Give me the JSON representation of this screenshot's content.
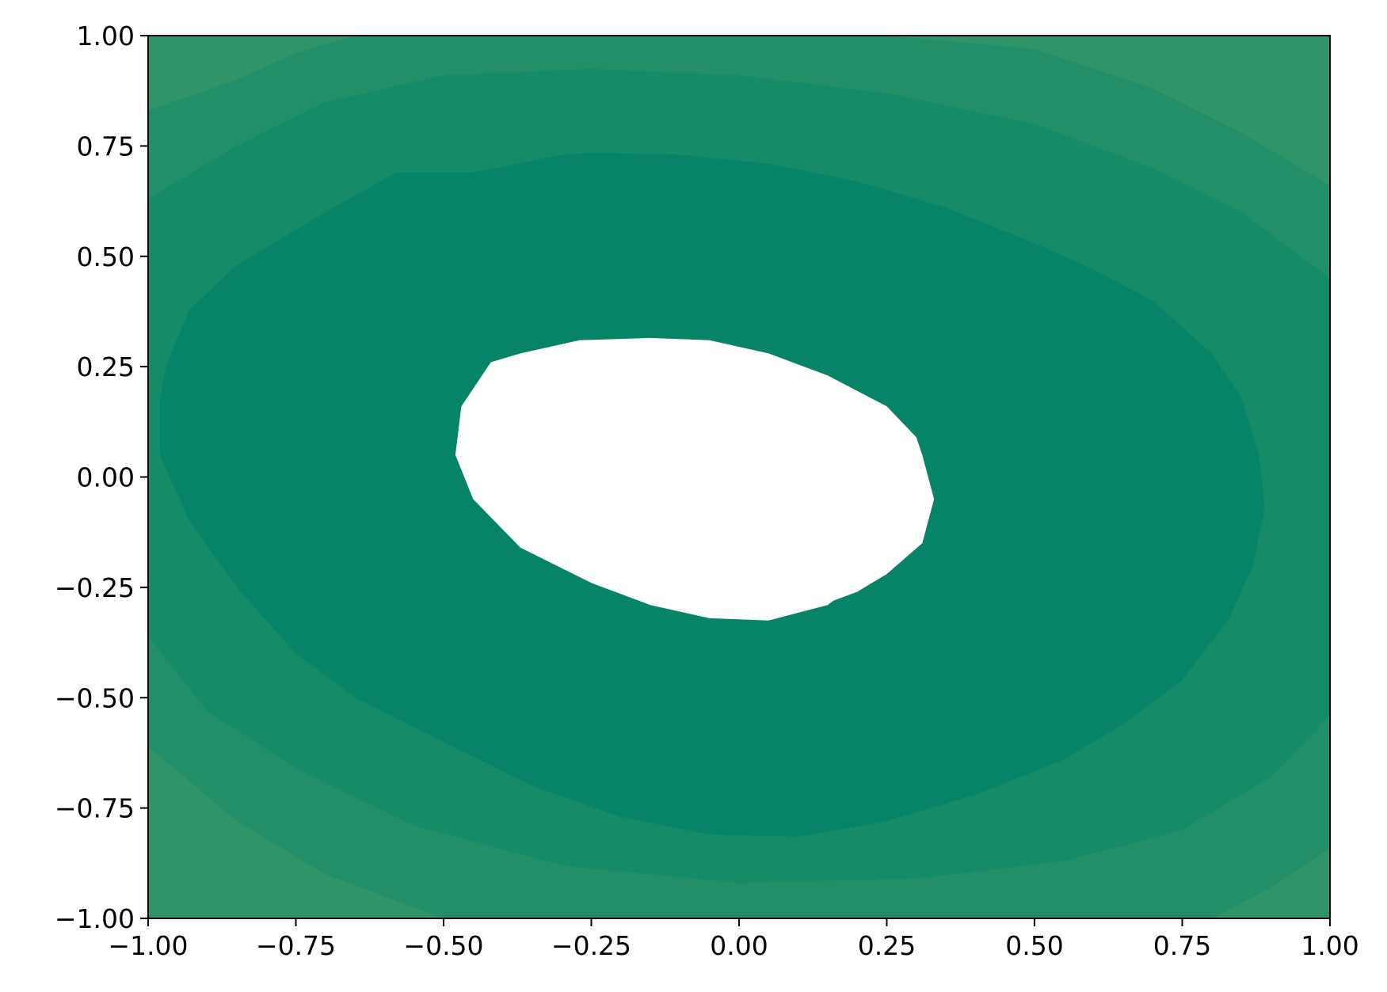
{
  "chart_data": {
    "type": "contourf",
    "title": "",
    "xlabel": "",
    "ylabel": "",
    "xlim": [
      -1.0,
      1.0
    ],
    "ylim": [
      -1.0,
      1.0
    ],
    "x_ticks": [
      -1.0,
      -0.75,
      -0.5,
      -0.25,
      0.0,
      0.25,
      0.5,
      0.75,
      1.0
    ],
    "y_ticks": [
      -1.0,
      -0.75,
      -0.5,
      -0.25,
      0.0,
      0.25,
      0.5,
      0.75,
      1.0
    ],
    "x_tick_labels": [
      "−1.00",
      "−0.75",
      "−0.50",
      "−0.25",
      "0.00",
      "0.25",
      "0.50",
      "0.75",
      "1.00"
    ],
    "y_tick_labels": [
      "−1.00",
      "−0.75",
      "−0.50",
      "−0.25",
      "0.00",
      "0.25",
      "0.50",
      "0.75",
      "1.00"
    ],
    "grid": false,
    "legend": false,
    "hole_color": "#ffffff",
    "levels": [
      {
        "name": "band-4",
        "color": "#2f9467",
        "points": [
          [
            -1.0,
            1.0
          ],
          [
            1.0,
            1.0
          ],
          [
            1.0,
            -1.0
          ],
          [
            -1.0,
            -1.0
          ]
        ]
      },
      {
        "name": "band-3",
        "color": "#228f68",
        "points": [
          [
            -1.0,
            0.83
          ],
          [
            -0.85,
            0.9
          ],
          [
            -0.75,
            0.96
          ],
          [
            -0.65,
            1.0
          ],
          [
            0.25,
            1.0
          ],
          [
            0.5,
            0.97
          ],
          [
            0.7,
            0.88
          ],
          [
            0.85,
            0.78
          ],
          [
            1.0,
            0.66
          ],
          [
            1.0,
            -0.84
          ],
          [
            0.9,
            -0.93
          ],
          [
            0.8,
            -1.0
          ],
          [
            -0.5,
            -1.0
          ],
          [
            -0.7,
            -0.9
          ],
          [
            -0.85,
            -0.78
          ],
          [
            -1.0,
            -0.61
          ]
        ]
      },
      {
        "name": "band-2",
        "color": "#168b68",
        "points": [
          [
            -1.0,
            0.63
          ],
          [
            -0.85,
            0.75
          ],
          [
            -0.7,
            0.85
          ],
          [
            -0.5,
            0.91
          ],
          [
            -0.25,
            0.925
          ],
          [
            0.0,
            0.91
          ],
          [
            0.25,
            0.87
          ],
          [
            0.5,
            0.8
          ],
          [
            0.7,
            0.7
          ],
          [
            0.85,
            0.6
          ],
          [
            1.0,
            0.45
          ],
          [
            1.0,
            -0.54
          ],
          [
            0.9,
            -0.68
          ],
          [
            0.75,
            -0.8
          ],
          [
            0.55,
            -0.87
          ],
          [
            0.3,
            -0.91
          ],
          [
            0.0,
            -0.92
          ],
          [
            -0.3,
            -0.88
          ],
          [
            -0.55,
            -0.79
          ],
          [
            -0.75,
            -0.66
          ],
          [
            -0.9,
            -0.53
          ],
          [
            -1.0,
            -0.36
          ]
        ]
      },
      {
        "name": "band-1",
        "color": "#078467",
        "points": [
          [
            -0.98,
            0.18
          ],
          [
            -0.97,
            0.25
          ],
          [
            -0.93,
            0.38
          ],
          [
            -0.85,
            0.48
          ],
          [
            -0.7,
            0.6
          ],
          [
            -0.58,
            0.69
          ],
          [
            -0.45,
            0.69
          ],
          [
            -0.3,
            0.73
          ],
          [
            -0.25,
            0.735
          ],
          [
            -0.1,
            0.73
          ],
          [
            0.05,
            0.71
          ],
          [
            0.2,
            0.67
          ],
          [
            0.35,
            0.61
          ],
          [
            0.5,
            0.53
          ],
          [
            0.6,
            0.47
          ],
          [
            0.7,
            0.4
          ],
          [
            0.8,
            0.28
          ],
          [
            0.85,
            0.18
          ],
          [
            0.88,
            0.05
          ],
          [
            0.89,
            -0.07
          ],
          [
            0.87,
            -0.2
          ],
          [
            0.83,
            -0.32
          ],
          [
            0.75,
            -0.46
          ],
          [
            0.65,
            -0.56
          ],
          [
            0.55,
            -0.64
          ],
          [
            0.4,
            -0.72
          ],
          [
            0.25,
            -0.78
          ],
          [
            0.1,
            -0.815
          ],
          [
            -0.05,
            -0.81
          ],
          [
            -0.2,
            -0.77
          ],
          [
            -0.35,
            -0.7
          ],
          [
            -0.5,
            -0.6
          ],
          [
            -0.65,
            -0.5
          ],
          [
            -0.75,
            -0.4
          ],
          [
            -0.85,
            -0.25
          ],
          [
            -0.93,
            -0.1
          ],
          [
            -0.98,
            0.05
          ]
        ]
      }
    ],
    "hole": [
      [
        -0.42,
        0.26
      ],
      [
        -0.37,
        0.28
      ],
      [
        -0.27,
        0.31
      ],
      [
        -0.15,
        0.315
      ],
      [
        -0.05,
        0.31
      ],
      [
        0.05,
        0.28
      ],
      [
        0.15,
        0.23
      ],
      [
        0.25,
        0.16
      ],
      [
        0.3,
        0.09
      ],
      [
        0.31,
        0.05
      ],
      [
        0.33,
        -0.05
      ],
      [
        0.31,
        -0.15
      ],
      [
        0.25,
        -0.22
      ],
      [
        0.2,
        -0.26
      ],
      [
        0.16,
        -0.28
      ],
      [
        0.15,
        -0.29
      ],
      [
        0.05,
        -0.325
      ],
      [
        -0.05,
        -0.32
      ],
      [
        -0.15,
        -0.29
      ],
      [
        -0.25,
        -0.24
      ],
      [
        -0.37,
        -0.16
      ],
      [
        -0.45,
        -0.05
      ],
      [
        -0.48,
        0.05
      ],
      [
        -0.47,
        0.16
      ]
    ]
  }
}
